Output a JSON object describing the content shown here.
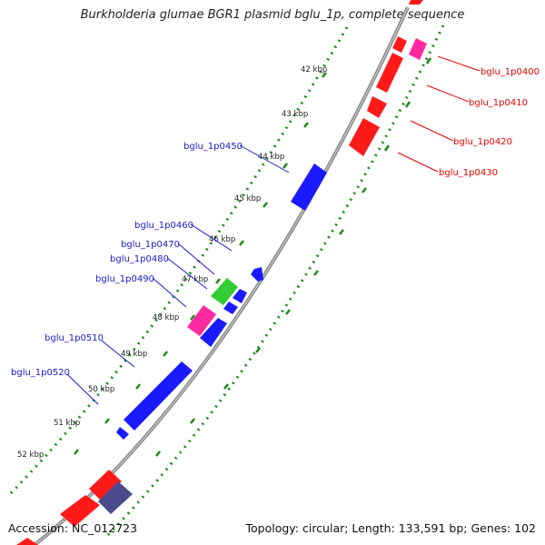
{
  "title": "Burkholderia glumae BGR1 plasmid bglu_1p, complete sequence",
  "footer": {
    "accession": "Accession: NC_012723",
    "summary": "Topology: circular; Length: 133,591 bp; Genes: 102"
  },
  "tick_labels": [
    "42 kbp",
    "43 kbp",
    "44 kbp",
    "45 kbp",
    "46 kbp",
    "47 kbp",
    "48 kbp",
    "49 kbp",
    "50 kbp",
    "51 kbp",
    "52 kbp"
  ],
  "gene_labels": [
    {
      "text": "bglu_1p0400",
      "color": "#e60000"
    },
    {
      "text": "bglu_1p0410",
      "color": "#e60000"
    },
    {
      "text": "bglu_1p0420",
      "color": "#e60000"
    },
    {
      "text": "bglu_1p0430",
      "color": "#e60000"
    },
    {
      "text": "bglu_1p0450",
      "color": "#1a1acc"
    },
    {
      "text": "bglu_1p0460",
      "color": "#1a1acc"
    },
    {
      "text": "bglu_1p0470",
      "color": "#1a1acc"
    },
    {
      "text": "bglu_1p0480",
      "color": "#1a1acc"
    },
    {
      "text": "bglu_1p0490",
      "color": "#1a1acc"
    },
    {
      "text": "bglu_1p0510",
      "color": "#1a1acc"
    },
    {
      "text": "bglu_1p0520",
      "color": "#1a1acc"
    }
  ],
  "colors": {
    "backbone": "#8c8c8c",
    "tick_ring": "#1a8a1a",
    "forward_gene": "#ff1a1a",
    "reverse_gene": "#1a1aff",
    "rna_gene": "#ff2aa0",
    "misc_gene": "#33cc33",
    "pseudo_gene": "#4a4a8c"
  }
}
